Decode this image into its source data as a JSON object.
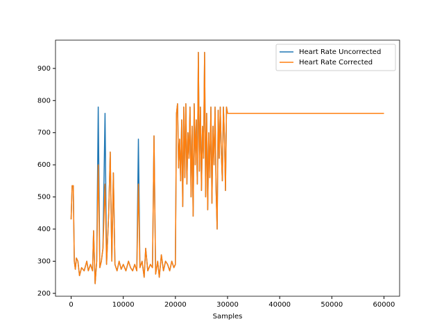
{
  "chart_data": {
    "type": "line",
    "xlabel": "Samples",
    "x": [
      0,
      200,
      400,
      600,
      800,
      1000,
      1300,
      1600,
      2000,
      2500,
      3000,
      3300,
      3700,
      4100,
      4300,
      4600,
      4900,
      5200,
      5500,
      5800,
      6100,
      6500,
      6800,
      7200,
      7500,
      7800,
      8100,
      8400,
      8800,
      9200,
      9600,
      10000,
      10500,
      11000,
      11400,
      11800,
      12200,
      12600,
      12900,
      13200,
      13600,
      14000,
      14300,
      14700,
      15200,
      15600,
      15900,
      16200,
      16600,
      16900,
      17300,
      17700,
      18100,
      18500,
      18900,
      19300,
      19700,
      20000,
      20200,
      20400,
      20600,
      20800,
      21000,
      21200,
      21400,
      21600,
      21800,
      22000,
      22200,
      22400,
      22600,
      22800,
      23000,
      23200,
      23400,
      23600,
      23800,
      24000,
      24200,
      24400,
      24600,
      24800,
      25000,
      25200,
      25400,
      25600,
      25800,
      26000,
      26200,
      26400,
      26600,
      26800,
      27000,
      27200,
      27400,
      27600,
      27800,
      28000,
      28200,
      28400,
      28600,
      28800,
      29000,
      29200,
      29400,
      29600,
      29800,
      30000,
      60000
    ],
    "series": [
      {
        "name": "Heart Rate Uncorrected",
        "color": "#1f77b4",
        "values": [
          430,
          535,
          535,
          300,
          275,
          310,
          300,
          255,
          280,
          270,
          300,
          270,
          290,
          270,
          395,
          230,
          300,
          780,
          280,
          300,
          340,
          760,
          290,
          450,
          640,
          300,
          575,
          290,
          270,
          300,
          275,
          290,
          270,
          300,
          280,
          270,
          290,
          270,
          680,
          280,
          300,
          250,
          340,
          270,
          290,
          280,
          690,
          260,
          300,
          250,
          320,
          270,
          300,
          290,
          270,
          300,
          280,
          290,
          760,
          790,
          590,
          680,
          550,
          740,
          470,
          780,
          560,
          790,
          540,
          700,
          620,
          780,
          500,
          720,
          440,
          790,
          600,
          740,
          540,
          950,
          580,
          780,
          520,
          720,
          620,
          950,
          500,
          760,
          460,
          700,
          560,
          780,
          480,
          720,
          600,
          780,
          520,
          400,
          770,
          620,
          780,
          640,
          550,
          780,
          690,
          520,
          780,
          760,
          760
        ]
      },
      {
        "name": "Heart Rate Corrected",
        "color": "#ff7f0e",
        "values": [
          430,
          535,
          535,
          300,
          275,
          310,
          300,
          255,
          280,
          270,
          300,
          270,
          290,
          270,
          395,
          230,
          300,
          600,
          280,
          300,
          340,
          540,
          290,
          450,
          640,
          300,
          575,
          290,
          270,
          300,
          275,
          290,
          270,
          300,
          280,
          270,
          290,
          270,
          540,
          280,
          300,
          250,
          340,
          270,
          290,
          280,
          690,
          260,
          300,
          250,
          320,
          270,
          300,
          290,
          270,
          300,
          280,
          290,
          760,
          790,
          590,
          680,
          550,
          740,
          470,
          780,
          560,
          790,
          540,
          700,
          620,
          780,
          500,
          720,
          440,
          790,
          600,
          740,
          540,
          950,
          580,
          780,
          520,
          720,
          620,
          950,
          500,
          760,
          460,
          700,
          560,
          780,
          480,
          720,
          600,
          780,
          520,
          400,
          770,
          620,
          780,
          640,
          550,
          780,
          690,
          520,
          780,
          760,
          760
        ]
      }
    ],
    "xlim": [
      -3000,
      63000
    ],
    "xticks": [
      0,
      10000,
      20000,
      30000,
      40000,
      50000,
      60000
    ],
    "ylim": [
      191,
      988
    ],
    "yticks": [
      200,
      300,
      400,
      500,
      600,
      700,
      800,
      900
    ],
    "legend": "upper right"
  }
}
